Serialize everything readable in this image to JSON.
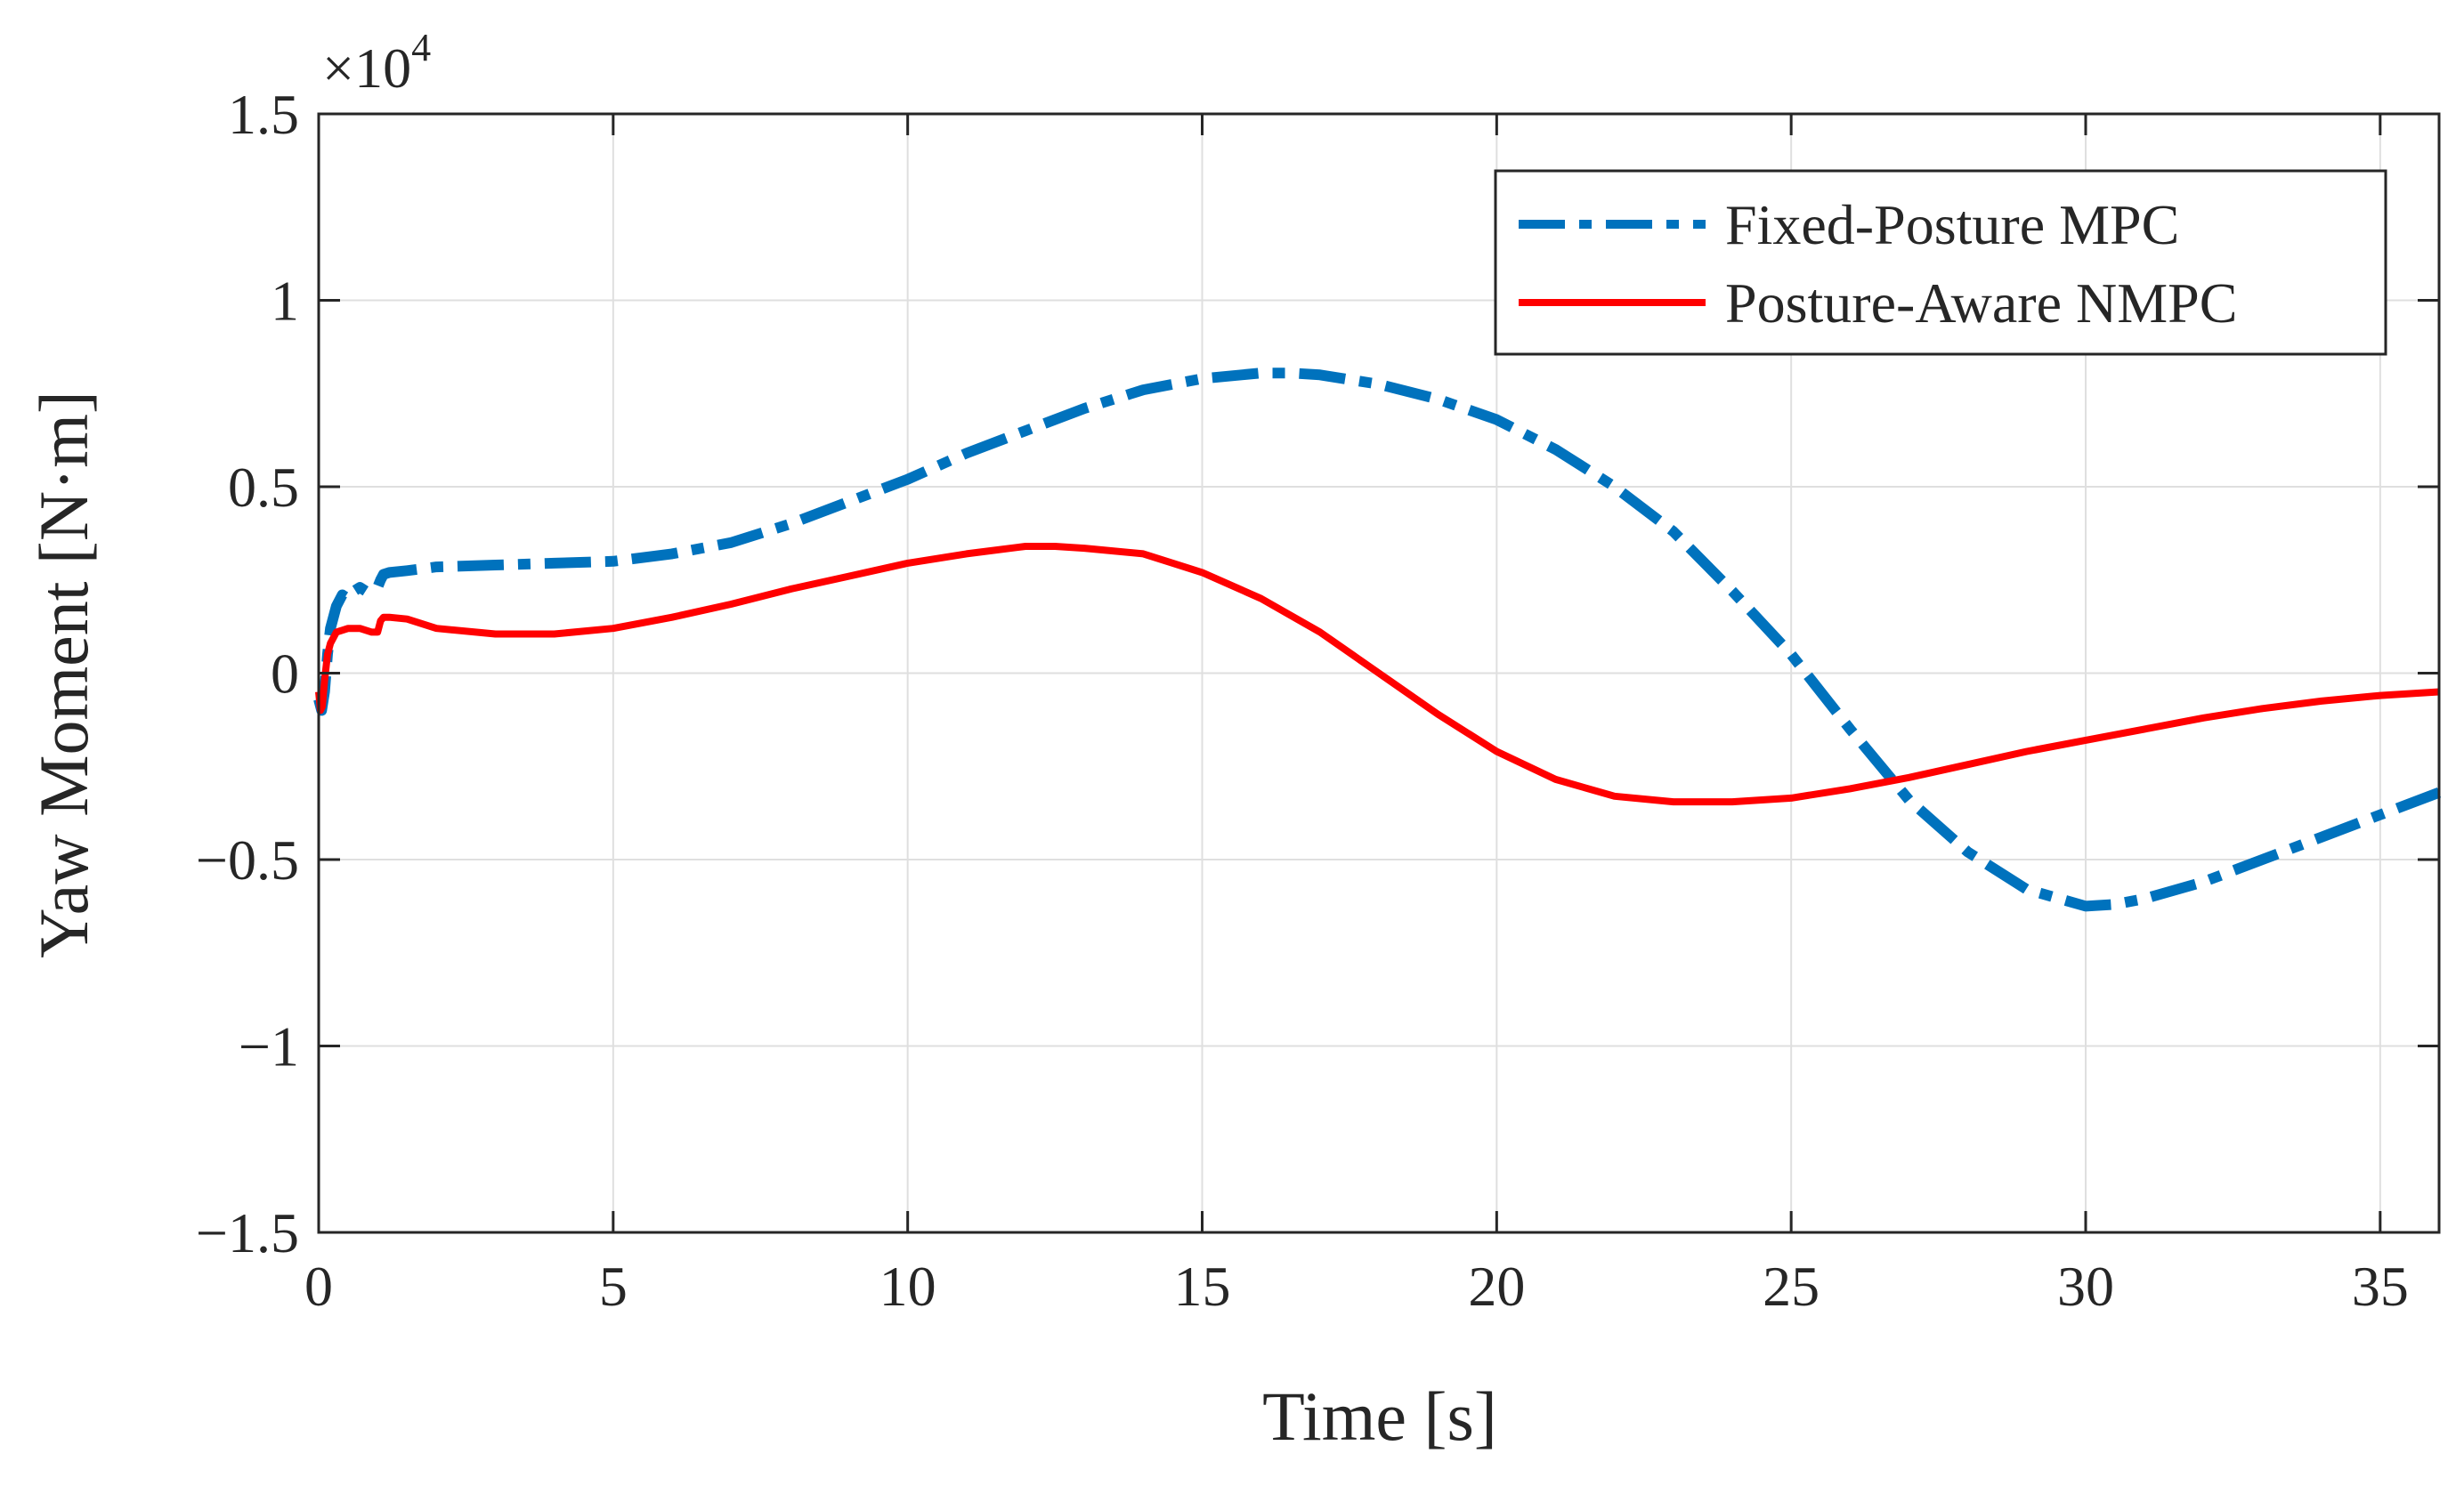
{
  "chart_data": {
    "type": "line",
    "title": "",
    "xlabel": "Time [s]",
    "ylabel": "Yaw Moment [N·m]",
    "xlim": [
      0,
      36
    ],
    "ylim": [
      -1.5,
      1.5
    ],
    "y_exponent_base": "×10",
    "y_exponent_power": "4",
    "grid": true,
    "legend_position": "top-right",
    "x_ticks": [
      0,
      5,
      10,
      15,
      20,
      25,
      30,
      35
    ],
    "x_tick_labels": [
      "0",
      "5",
      "10",
      "15",
      "20",
      "25",
      "30",
      "35"
    ],
    "y_ticks": [
      -1.5,
      -1,
      -0.5,
      0,
      0.5,
      1,
      1.5
    ],
    "y_tick_labels": [
      "−1.5",
      "−1",
      "−0.5",
      "0",
      "0.5",
      "1",
      "1.5"
    ],
    "series": [
      {
        "name": "Fixed-Posture MPC",
        "color": "#0072BD",
        "style": "dashdot",
        "x": [
          0,
          0.05,
          0.1,
          0.15,
          0.2,
          0.3,
          0.4,
          0.5,
          0.6,
          0.7,
          0.8,
          0.9,
          1.0,
          1.05,
          1.1,
          1.2,
          1.5,
          2,
          3,
          4,
          5,
          6,
          7,
          8,
          9,
          10,
          11,
          12,
          13,
          14,
          15,
          16,
          16.5,
          17,
          18,
          19,
          20,
          21,
          22,
          23,
          24,
          25,
          26,
          27,
          28,
          29,
          30,
          30.5,
          31,
          32,
          33,
          34,
          35,
          36
        ],
        "y": [
          -0.07,
          -0.1,
          -0.05,
          0.05,
          0.12,
          0.18,
          0.21,
          0.2,
          0.22,
          0.23,
          0.22,
          0.225,
          0.23,
          0.25,
          0.265,
          0.27,
          0.275,
          0.285,
          0.29,
          0.295,
          0.3,
          0.32,
          0.35,
          0.4,
          0.46,
          0.52,
          0.59,
          0.65,
          0.71,
          0.76,
          0.79,
          0.805,
          0.805,
          0.8,
          0.775,
          0.735,
          0.68,
          0.6,
          0.5,
          0.38,
          0.22,
          0.05,
          -0.15,
          -0.34,
          -0.48,
          -0.58,
          -0.625,
          -0.62,
          -0.605,
          -0.56,
          -0.5,
          -0.44,
          -0.38,
          -0.32
        ]
      },
      {
        "name": "Posture-Aware NMPC",
        "color": "#FF0000",
        "style": "solid",
        "x": [
          0,
          0.03,
          0.06,
          0.1,
          0.15,
          0.2,
          0.3,
          0.5,
          0.7,
          0.9,
          1.0,
          1.05,
          1.1,
          1.2,
          1.5,
          2,
          3,
          4,
          5,
          6,
          7,
          8,
          9,
          10,
          11,
          12,
          12.5,
          13,
          14,
          15,
          16,
          17,
          18,
          19,
          20,
          21,
          22,
          23,
          24,
          25,
          26,
          27,
          28,
          29,
          30,
          31,
          32,
          33,
          34,
          35,
          36
        ],
        "y": [
          -0.05,
          -0.1,
          -0.09,
          -0.02,
          0.05,
          0.08,
          0.11,
          0.12,
          0.12,
          0.11,
          0.11,
          0.14,
          0.15,
          0.15,
          0.145,
          0.12,
          0.105,
          0.105,
          0.12,
          0.15,
          0.185,
          0.225,
          0.26,
          0.295,
          0.32,
          0.34,
          0.34,
          0.335,
          0.32,
          0.27,
          0.2,
          0.11,
          0.0,
          -0.11,
          -0.21,
          -0.285,
          -0.33,
          -0.345,
          -0.345,
          -0.335,
          -0.31,
          -0.28,
          -0.245,
          -0.21,
          -0.18,
          -0.15,
          -0.12,
          -0.095,
          -0.075,
          -0.06,
          -0.05
        ]
      }
    ]
  }
}
